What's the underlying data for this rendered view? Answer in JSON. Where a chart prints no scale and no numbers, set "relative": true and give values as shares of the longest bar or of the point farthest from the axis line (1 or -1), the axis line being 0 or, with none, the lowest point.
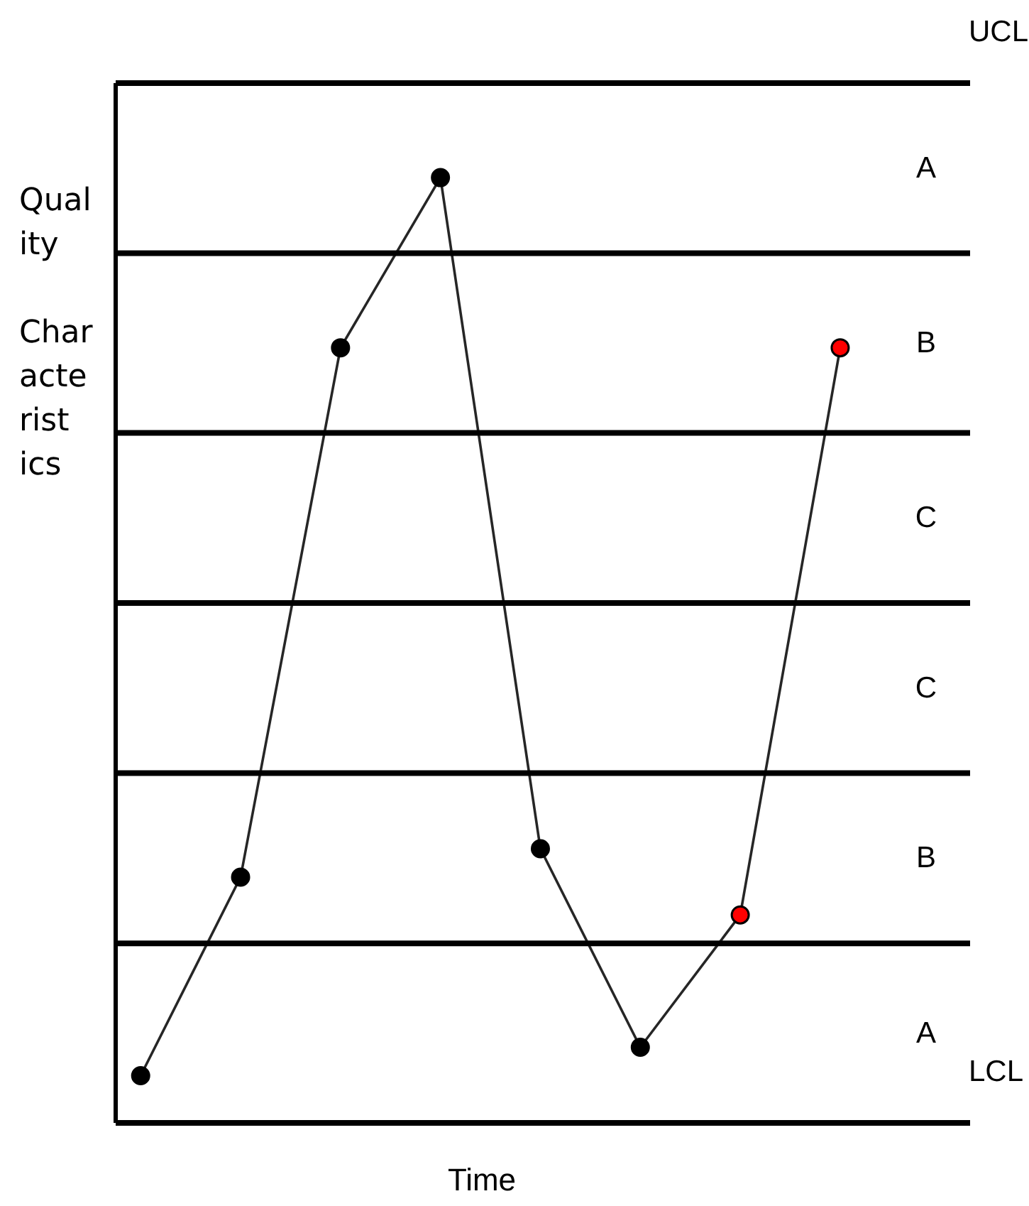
{
  "chart_data": {
    "type": "line",
    "relative": true,
    "xlabel": "Time",
    "ylabel": "Quality Characteristics",
    "categories": [
      null,
      null,
      null,
      null,
      null,
      null,
      null,
      null
    ],
    "series": [
      {
        "color": "#000000",
        "colors": [
          "#000000",
          "#000000",
          "#000000",
          "#000000",
          "#000000",
          "#000000",
          "#ff0000",
          "#ff0000"
        ],
        "values": [
          0.05,
          0.26,
          0.82,
          1,
          0.29,
          0.08,
          0.22,
          0.82
        ]
      }
    ],
    "marker": "circle",
    "line_style": "solid",
    "grid": false,
    "ref_lines": [
      {
        "axis": "y",
        "value": 1.1,
        "label": "UCL",
        "color": "#000000"
      },
      {
        "axis": "y",
        "value": 0.92,
        "color": "#000000"
      },
      {
        "axis": "y",
        "value": 0.73,
        "color": "#000000"
      },
      {
        "axis": "y",
        "value": 0.55,
        "color": "#000000"
      },
      {
        "axis": "y",
        "value": 0.37,
        "color": "#000000"
      },
      {
        "axis": "y",
        "value": 0.19,
        "color": "#000000"
      },
      {
        "axis": "y",
        "value": 0,
        "label": "LCL",
        "color": "#000000"
      }
    ],
    "annotations": [
      "A",
      "B",
      "C",
      "C",
      "B",
      "A"
    ]
  }
}
